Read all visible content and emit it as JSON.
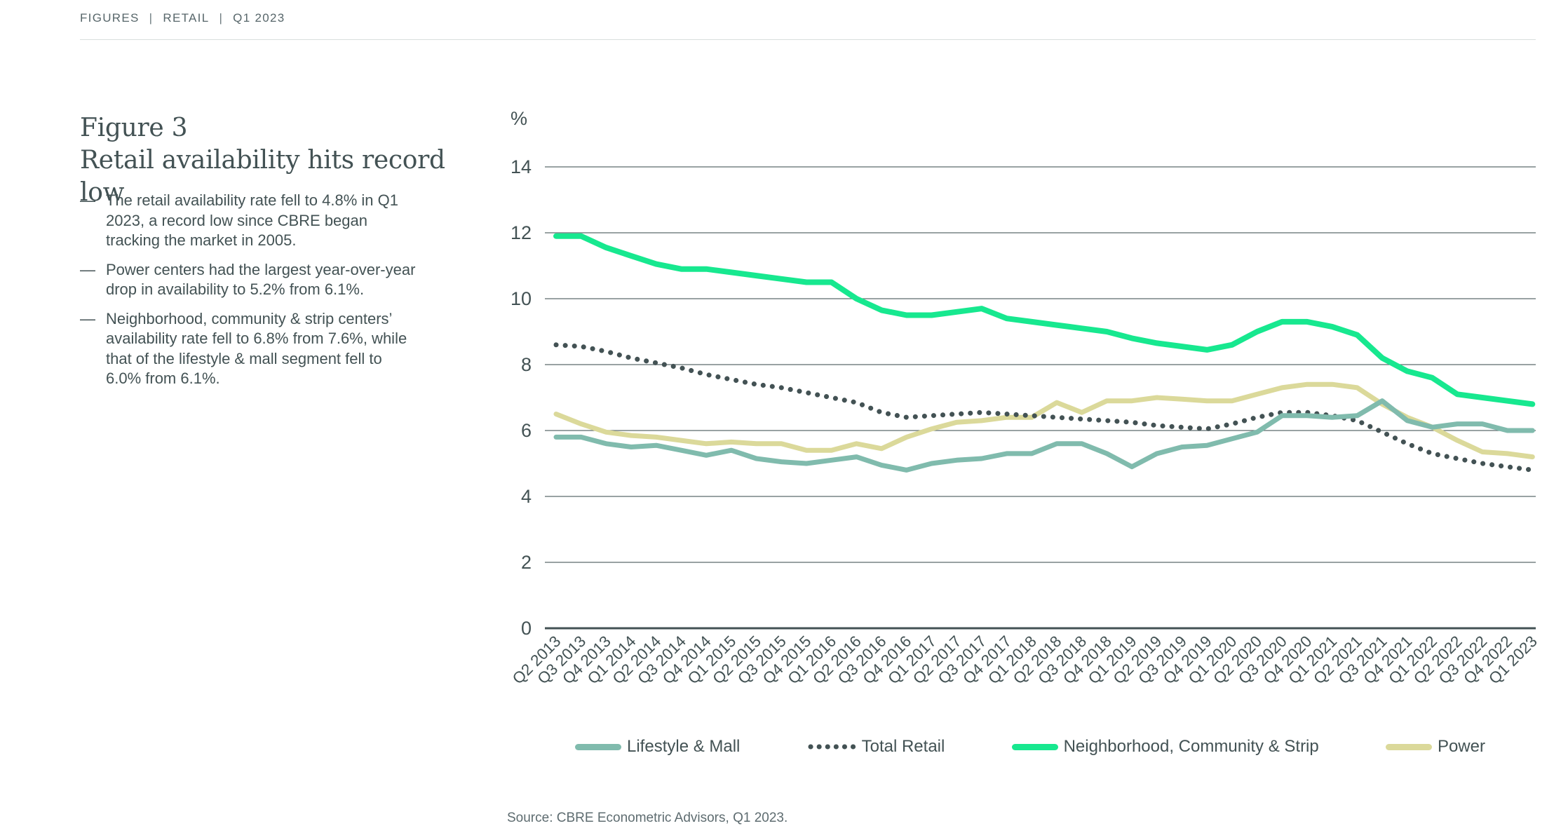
{
  "breadcrumb": {
    "items": [
      "FIGURES",
      "RETAIL",
      "Q1 2023"
    ],
    "separator": "|"
  },
  "figure": {
    "label": "Figure 3",
    "title": "Retail availability hits record low",
    "bullet_marker": "—",
    "bullets": [
      "The retail availability rate fell to 4.8% in Q1 2023, a record low since CBRE began tracking the market in 2005.",
      "Power centers had the largest year-over-year drop in availability to 5.2% from 6.1%.",
      "Neighborhood, community & strip centers’ availability rate fell to 6.8% from 7.6%, while that of the lifestyle & mall segment fell to 6.0% from 6.1%."
    ]
  },
  "source": "Source: CBRE Econometric Advisors, Q1 2023.",
  "colors": {
    "text_dark": "#435254",
    "grid_line": "#5c6a6c",
    "axis_zero_line": "#435254",
    "rule_light": "#d9dedd",
    "accent_green": "#17E88F",
    "celadon": "#80BBAD",
    "wheat": "#DBD99A"
  },
  "chart_data": {
    "type": "line",
    "unit_label": "%",
    "ylim": [
      0,
      14
    ],
    "yticks": [
      0,
      2,
      4,
      6,
      8,
      10,
      12,
      14
    ],
    "grid": true,
    "legend_position": "bottom",
    "categories": [
      "Q2 2013",
      "Q3 2013",
      "Q4 2013",
      "Q1 2014",
      "Q2 2014",
      "Q3 2014",
      "Q4 2014",
      "Q1 2015",
      "Q2 2015",
      "Q3 2015",
      "Q4 2015",
      "Q1 2016",
      "Q2 2016",
      "Q3 2016",
      "Q4 2016",
      "Q1 2017",
      "Q2 2017",
      "Q3 2017",
      "Q4 2017",
      "Q1 2018",
      "Q2 2018",
      "Q3 2018",
      "Q4 2018",
      "Q1 2019",
      "Q2 2019",
      "Q3 2019",
      "Q4 2019",
      "Q1 2020",
      "Q2 2020",
      "Q3 2020",
      "Q4 2020",
      "Q1 2021",
      "Q2 2021",
      "Q3 2021",
      "Q4 2021",
      "Q1 2022",
      "Q2 2022",
      "Q3 2022",
      "Q4 2022",
      "Q1 2023"
    ],
    "series": [
      {
        "name": "Lifestyle & Mall",
        "style": "solid",
        "color": "#80BBAD",
        "stroke_width": 7,
        "values": [
          5.8,
          5.8,
          5.6,
          5.5,
          5.55,
          5.4,
          5.25,
          5.4,
          5.15,
          5.05,
          5.0,
          5.1,
          5.2,
          4.95,
          4.8,
          5.0,
          5.1,
          5.15,
          5.3,
          5.3,
          5.6,
          5.6,
          5.3,
          4.9,
          5.3,
          5.5,
          5.55,
          5.75,
          5.95,
          6.45,
          6.45,
          6.4,
          6.45,
          6.9,
          6.3,
          6.1,
          6.2,
          6.2,
          6.0,
          6.0
        ]
      },
      {
        "name": "Total Retail",
        "style": "dotted",
        "color": "#435254",
        "stroke_width": 7,
        "values": [
          8.6,
          8.55,
          8.4,
          8.2,
          8.05,
          7.9,
          7.7,
          7.55,
          7.4,
          7.3,
          7.15,
          7.0,
          6.85,
          6.55,
          6.4,
          6.45,
          6.5,
          6.55,
          6.5,
          6.45,
          6.4,
          6.35,
          6.3,
          6.25,
          6.15,
          6.1,
          6.05,
          6.2,
          6.4,
          6.55,
          6.55,
          6.45,
          6.3,
          5.95,
          5.6,
          5.3,
          5.15,
          5.0,
          4.9,
          4.8
        ]
      },
      {
        "name": "Neighborhood, Community & Strip",
        "style": "solid",
        "color": "#17E88F",
        "stroke_width": 8,
        "values": [
          11.9,
          11.9,
          11.55,
          11.3,
          11.05,
          10.9,
          10.9,
          10.8,
          10.7,
          10.6,
          10.5,
          10.5,
          10.0,
          9.65,
          9.5,
          9.5,
          9.6,
          9.7,
          9.4,
          9.3,
          9.2,
          9.1,
          9.0,
          8.8,
          8.65,
          8.55,
          8.45,
          8.6,
          9.0,
          9.3,
          9.3,
          9.15,
          8.9,
          8.2,
          7.8,
          7.6,
          7.1,
          7.0,
          6.9,
          6.8
        ]
      },
      {
        "name": "Power",
        "style": "solid",
        "color": "#DBD99A",
        "stroke_width": 7,
        "values": [
          6.5,
          6.2,
          5.95,
          5.85,
          5.8,
          5.7,
          5.6,
          5.65,
          5.6,
          5.6,
          5.4,
          5.4,
          5.6,
          5.45,
          5.8,
          6.05,
          6.25,
          6.3,
          6.4,
          6.4,
          6.85,
          6.55,
          6.9,
          6.9,
          7.0,
          6.95,
          6.9,
          6.9,
          7.1,
          7.3,
          7.4,
          7.4,
          7.3,
          6.8,
          6.4,
          6.1,
          5.7,
          5.35,
          5.3,
          5.2
        ]
      }
    ]
  }
}
